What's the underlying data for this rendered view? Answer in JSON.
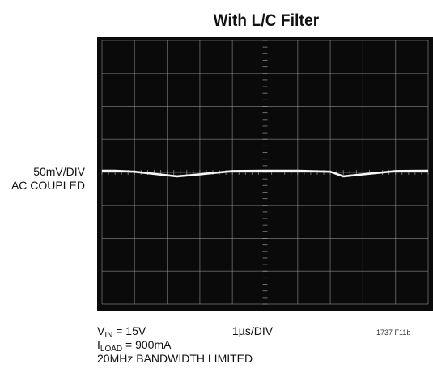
{
  "title": "With L/C Filter",
  "vertical_scale": "50mV/DIV",
  "coupling": "AC COUPLED",
  "footer": {
    "vin_sym": "V",
    "vin_sub": "IN",
    "vin_rest": " = 15V",
    "iload_sym": "I",
    "iload_sub": "LOAD",
    "iload_rest": " = 900mA",
    "bandwidth": "20MHz BANDWIDTH LIMITED",
    "time_scale": "1µs/DIV",
    "figure_code": "1737 F11b"
  },
  "colors": {
    "screen": "#0a0a0a",
    "grid": "#9a9a9a",
    "trace": "#f5f5f5"
  },
  "chart_data": {
    "type": "line",
    "title": "With L/C Filter",
    "xlabel": "1µs/DIV",
    "ylabel": "50mV/DIV",
    "grid": true,
    "x_divisions": 10,
    "y_divisions": 8,
    "xlim": [
      0,
      10
    ],
    "ylim": [
      -4,
      4
    ],
    "series": [
      {
        "x": [
          0,
          0.4,
          1.0,
          2.3,
          3.0,
          4.0,
          5.0,
          6.0,
          7.0,
          7.4,
          8.0,
          9.0,
          10.0
        ],
        "y": [
          0.05,
          0.05,
          0.02,
          -0.12,
          -0.06,
          0.04,
          0.05,
          0.05,
          0.02,
          -0.12,
          -0.06,
          0.04,
          0.05
        ]
      }
    ]
  }
}
